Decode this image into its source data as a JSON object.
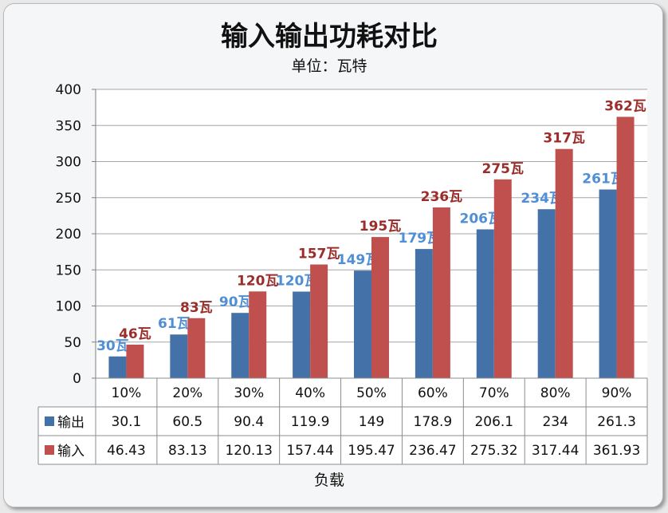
{
  "chart_data": {
    "type": "bar",
    "title": "输入输出功耗对比",
    "subtitle": "单位：瓦特",
    "xlabel": "负载",
    "ylabel": "",
    "ylim": [
      0,
      400
    ],
    "yticks": [
      "0",
      "50",
      "100",
      "150",
      "200",
      "250",
      "300",
      "350",
      "400"
    ],
    "grid": true,
    "legend": "in data table rows",
    "categories": [
      "10%",
      "20%",
      "30%",
      "40%",
      "50%",
      "60%",
      "70%",
      "80%",
      "90%"
    ],
    "series": [
      {
        "name": "输出",
        "color": "#4472a8",
        "label_color": "#4f8fd6",
        "values": [
          30.1,
          60.5,
          90.4,
          119.9,
          149,
          178.9,
          206.1,
          234,
          261.3
        ],
        "table_values": [
          "30.1",
          "60.5",
          "90.4",
          "119.9",
          "149",
          "178.9",
          "206.1",
          "234",
          "261.3"
        ],
        "data_labels": [
          "30瓦",
          "61瓦",
          "90瓦",
          "120瓦",
          "149瓦",
          "179瓦",
          "206瓦",
          "234瓦",
          "261瓦"
        ]
      },
      {
        "name": "输入",
        "color": "#c0504d",
        "label_color": "#9b2d2a",
        "values": [
          46.43,
          83.13,
          120.13,
          157.44,
          195.47,
          236.47,
          275.32,
          317.44,
          361.93
        ],
        "table_values": [
          "46.43",
          "83.13",
          "120.13",
          "157.44",
          "195.47",
          "236.47",
          "275.32",
          "317.44",
          "361.93"
        ],
        "data_labels": [
          "46瓦",
          "83瓦",
          "120瓦",
          "157瓦",
          "195瓦",
          "236瓦",
          "275瓦",
          "317瓦",
          "362瓦"
        ]
      }
    ]
  }
}
